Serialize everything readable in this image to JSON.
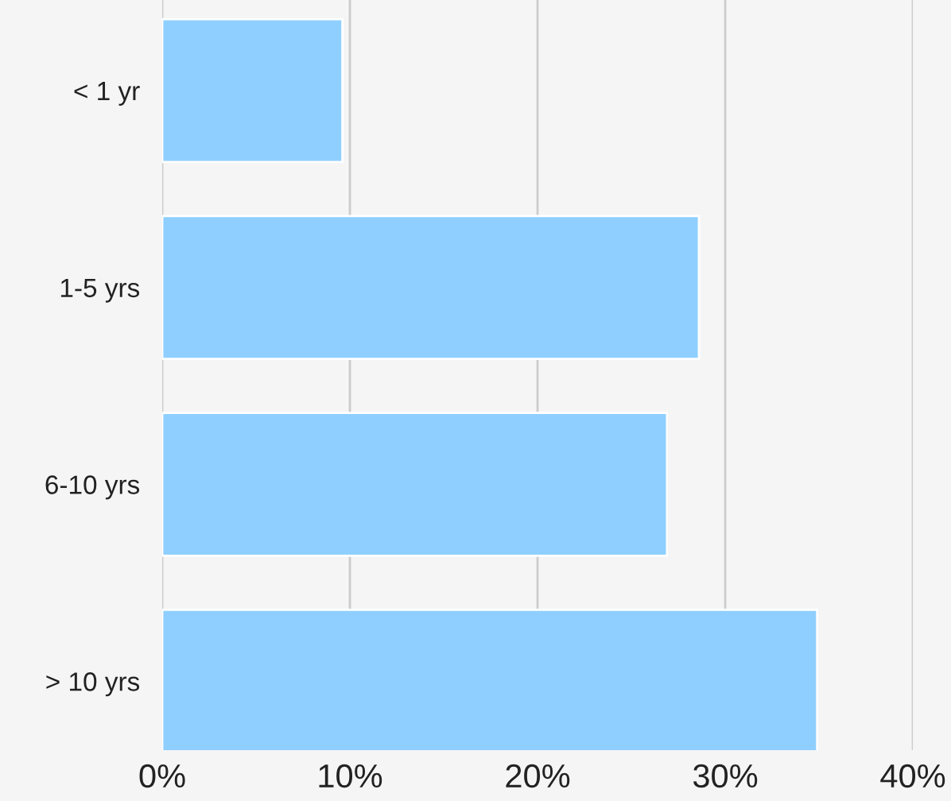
{
  "chart_data": {
    "type": "bar",
    "orientation": "horizontal",
    "categories": [
      "< 1 yr",
      "1-5 yrs",
      "6-10 yrs",
      "> 10 yrs"
    ],
    "values": [
      9.6,
      28.6,
      26.9,
      34.9
    ],
    "color": "#8fcfff",
    "xlim": [
      0,
      40
    ],
    "xticks": [
      {
        "value": 0,
        "label": "0%"
      },
      {
        "value": 10,
        "label": "10%"
      },
      {
        "value": 20,
        "label": "20%"
      },
      {
        "value": 30,
        "label": "30%"
      },
      {
        "value": 40,
        "label": "40%"
      }
    ],
    "grid": "x"
  }
}
